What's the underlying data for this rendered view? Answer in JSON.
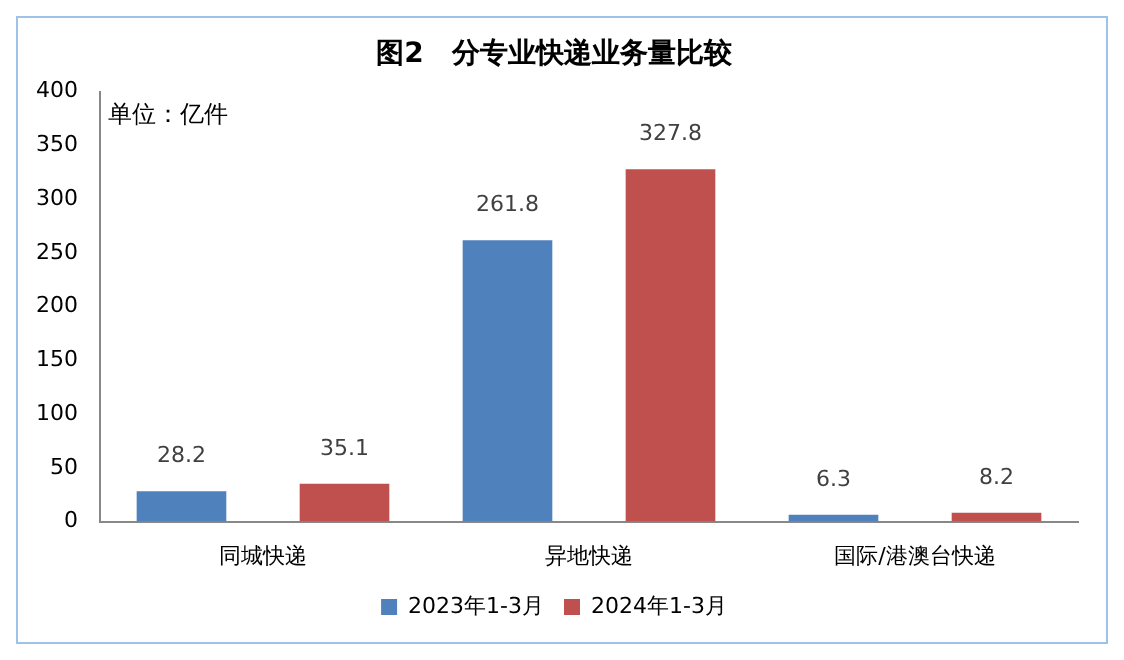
{
  "chart_data": {
    "type": "bar",
    "title": "图2　分专业快递业务量比较",
    "ylabel": "单位：亿件",
    "categories": [
      "同城快递",
      "异地快递",
      "国际/港澳台快递"
    ],
    "series": [
      {
        "name": "2023年1-3月",
        "color": "#4f81bd",
        "values": [
          28.2,
          261.8,
          6.3
        ]
      },
      {
        "name": "2024年1-3月",
        "color": "#c0504d",
        "values": [
          35.1,
          327.8,
          8.2
        ]
      }
    ],
    "ylim": [
      0,
      400
    ],
    "yticks": [
      0,
      50,
      100,
      150,
      200,
      250,
      300,
      350,
      400
    ],
    "grid": false,
    "legend": "bottom",
    "data_labels": true
  }
}
